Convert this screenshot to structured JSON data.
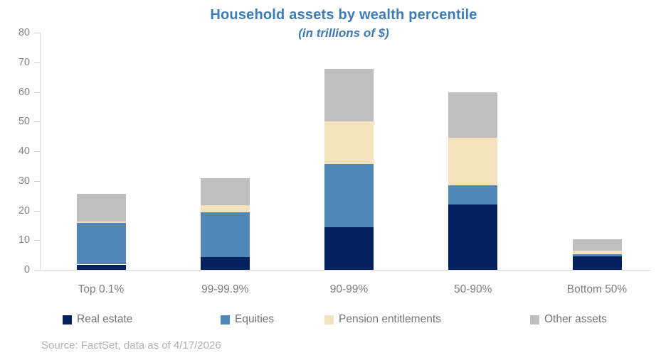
{
  "source": "Source: FactSet, data as of 4/17/2026",
  "chart_data": {
    "type": "bar",
    "stacked": true,
    "title": "Household assets by wealth percentile",
    "subtitle": "(in trillions of $)",
    "categories": [
      "Top 0.1%",
      "99-99.9%",
      "90-99%",
      "50-90%",
      "Bottom 50%"
    ],
    "series": [
      {
        "name": "Real estate",
        "color": "#04215f",
        "values": [
          1.8,
          4.3,
          14.3,
          22.0,
          4.5
        ]
      },
      {
        "name": "Equities",
        "color": "#5287ba",
        "values": [
          14.0,
          15.0,
          21.4,
          6.4,
          0.8
        ]
      },
      {
        "name": "Pension entitlements",
        "color": "#f3e2bb",
        "values": [
          0.5,
          2.4,
          14.4,
          16.2,
          1.2
        ]
      },
      {
        "name": "Other assets",
        "color": "#bfbfbf",
        "values": [
          9.4,
          9.3,
          17.7,
          15.4,
          3.7
        ]
      }
    ],
    "totals": [
      25.7,
      31.0,
      67.8,
      60.0,
      10.2
    ],
    "ylabel": "",
    "xlabel": "",
    "ylim": [
      0,
      80
    ],
    "ytick_step": 10,
    "grid": false,
    "legend_position": "bottom"
  }
}
